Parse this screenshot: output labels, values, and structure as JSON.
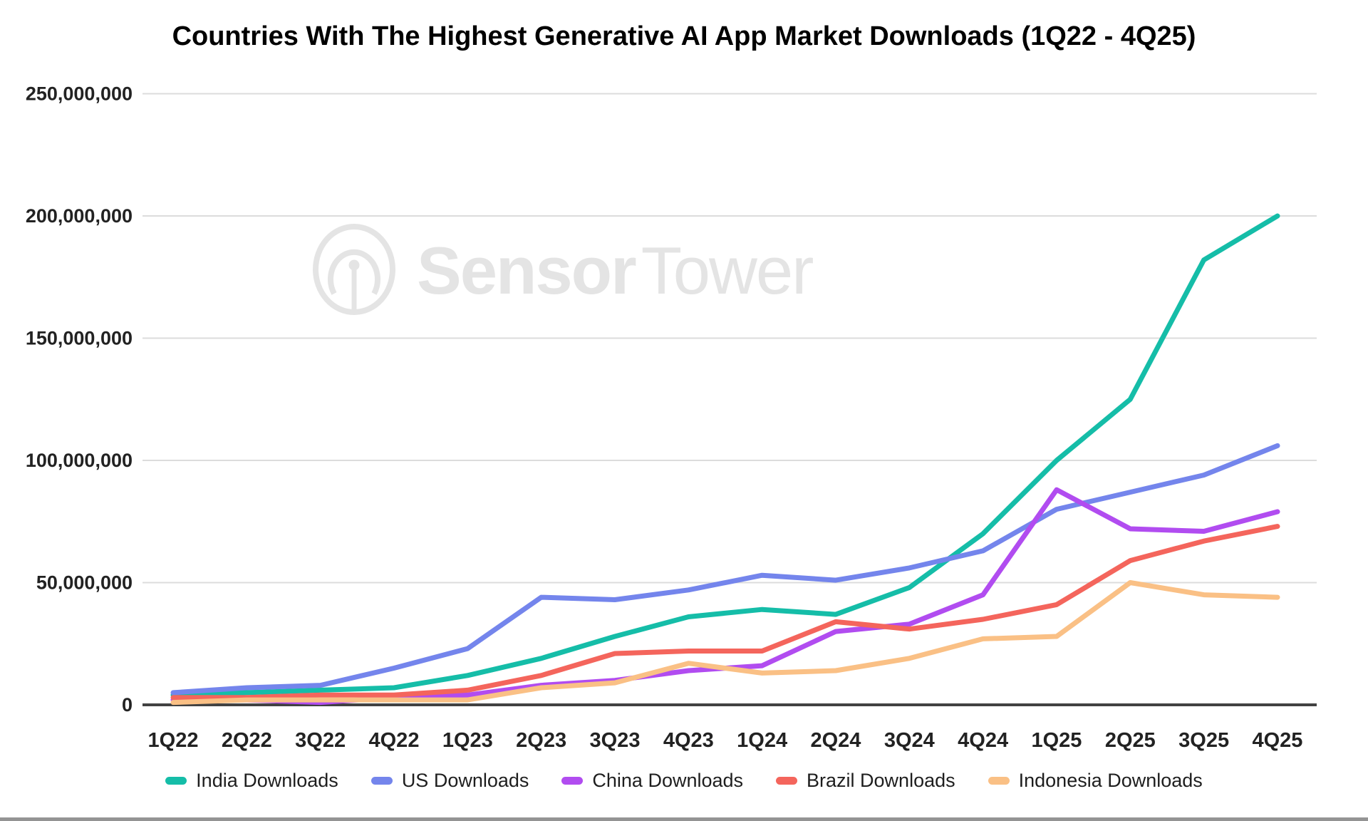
{
  "chart_data": {
    "type": "line",
    "title": "Countries With The Highest Generative AI App Market Downloads (1Q22 - 4Q25)",
    "xlabel": "",
    "ylabel": "",
    "unit": "downloads",
    "ylim": [
      0,
      250000000
    ],
    "grid": "horizontal",
    "legend_position": "bottom",
    "y_tick_labels": [
      "0",
      "50,000,000",
      "100,000,000",
      "150,000,000",
      "200,000,000",
      "250,000,000"
    ],
    "categories": [
      "1Q22",
      "2Q22",
      "3Q22",
      "4Q22",
      "1Q23",
      "2Q23",
      "3Q23",
      "4Q23",
      "1Q24",
      "2Q24",
      "3Q24",
      "4Q24",
      "1Q25",
      "2Q25",
      "3Q25",
      "4Q25"
    ],
    "series": [
      {
        "name": "India Downloads",
        "color": "#15BDA8",
        "values": [
          4000000,
          5000000,
          6000000,
          7000000,
          12000000,
          19000000,
          28000000,
          36000000,
          39000000,
          37000000,
          48000000,
          70000000,
          100000000,
          125000000,
          182000000,
          200000000
        ]
      },
      {
        "name": "US Downloads",
        "color": "#7485EC",
        "values": [
          5000000,
          7000000,
          8000000,
          15000000,
          23000000,
          44000000,
          43000000,
          47000000,
          53000000,
          51000000,
          56000000,
          63000000,
          80000000,
          87000000,
          94000000,
          106000000
        ]
      },
      {
        "name": "China Downloads",
        "color": "#B14CF0",
        "values": [
          2000000,
          2000000,
          1000000,
          3000000,
          4000000,
          8000000,
          10000000,
          14000000,
          16000000,
          30000000,
          33000000,
          45000000,
          88000000,
          72000000,
          71000000,
          79000000
        ]
      },
      {
        "name": "Brazil Downloads",
        "color": "#F4655C",
        "values": [
          3000000,
          3000000,
          4000000,
          4000000,
          6000000,
          12000000,
          21000000,
          22000000,
          22000000,
          34000000,
          31000000,
          35000000,
          41000000,
          59000000,
          67000000,
          73000000
        ]
      },
      {
        "name": "Indonesia Downloads",
        "color": "#FAC085",
        "values": [
          1000000,
          2000000,
          2000000,
          2000000,
          2000000,
          7000000,
          9000000,
          17000000,
          13000000,
          14000000,
          19000000,
          27000000,
          28000000,
          50000000,
          45000000,
          44000000
        ]
      }
    ]
  },
  "watermark": {
    "brand_bold": "Sensor",
    "brand_light": "Tower"
  },
  "theme": {
    "grid_color": "#dcdcdc",
    "axis_color": "#424242",
    "tick_label_color": "#222222",
    "watermark_color": "#e4e4e4",
    "background": "#ffffff"
  }
}
